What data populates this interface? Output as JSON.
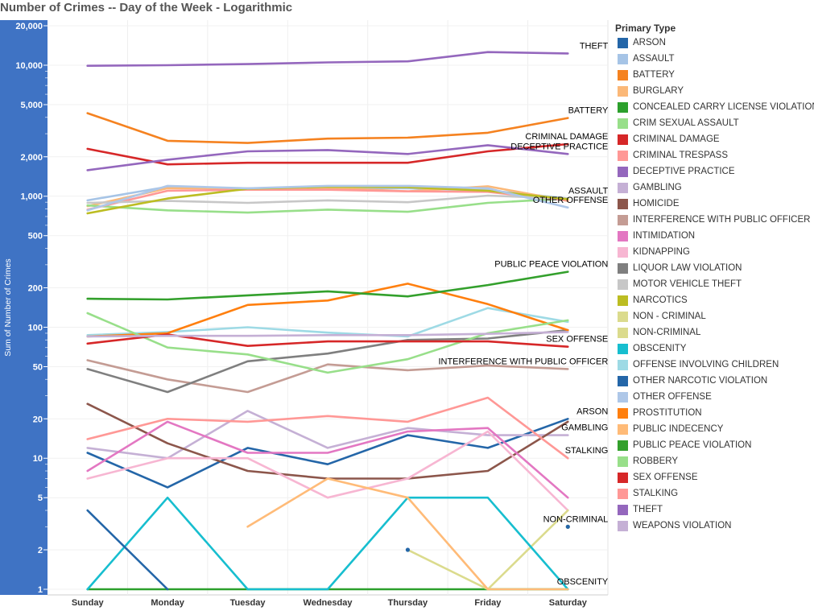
{
  "title": "Number of Crimes -- Day of the Week - Logarithmic",
  "chart_data": {
    "type": "line",
    "title": "Number of Crimes -- Day of the Week - Logarithmic",
    "xlabel": "",
    "ylabel": "Sum of Number of Crimes",
    "yscale": "log",
    "ylim": [
      1,
      20000
    ],
    "yticks": [
      1,
      2,
      5,
      10,
      20,
      50,
      100,
      200,
      500,
      1000,
      2000,
      5000,
      10000,
      20000
    ],
    "ytick_labels": [
      "1",
      "2",
      "5",
      "10",
      "20",
      "50",
      "100",
      "200",
      "500",
      "1,000",
      "2,000",
      "5,000",
      "10,000",
      "20,000"
    ],
    "categories": [
      "Sunday",
      "Monday",
      "Tuesday",
      "Wednesday",
      "Thursday",
      "Friday",
      "Saturday"
    ],
    "grid": true,
    "legend_title": "Primary Type",
    "legend_position": "right",
    "series": [
      {
        "name": "ARSON",
        "color": "#2466a8",
        "values": [
          11,
          6,
          12,
          9,
          15,
          12,
          20
        ],
        "end_label": "ARSON"
      },
      {
        "name": "ASSAULT",
        "color": "#a6c4e6",
        "values": [
          930,
          1180,
          1120,
          1160,
          1150,
          1110,
          960
        ],
        "end_label": "ASSAULT"
      },
      {
        "name": "BATTERY",
        "color": "#f58220",
        "values": [
          4300,
          2650,
          2550,
          2750,
          2800,
          3050,
          3950
        ],
        "end_label": "BATTERY"
      },
      {
        "name": "BURGLARY",
        "color": "#fbb878",
        "values": [
          840,
          1150,
          1150,
          1160,
          1090,
          1190,
          920
        ]
      },
      {
        "name": "CONCEALED CARRY LICENSE VIOLATION",
        "color": "#2ca02c",
        "values": [
          1,
          1,
          1,
          1,
          1,
          1,
          1
        ]
      },
      {
        "name": "CRIM SEXUAL ASSAULT",
        "color": "#98df8a",
        "values": [
          850,
          780,
          750,
          790,
          760,
          890,
          960
        ]
      },
      {
        "name": "CRIMINAL DAMAGE",
        "color": "#d62728",
        "values": [
          2300,
          1750,
          1800,
          1800,
          1800,
          2200,
          2500
        ],
        "end_label": "CRIMINAL DAMAGE"
      },
      {
        "name": "CRIMINAL TRESPASS",
        "color": "#ff9896",
        "values": [
          790,
          1100,
          1120,
          1120,
          1090,
          1080,
          930
        ]
      },
      {
        "name": "DECEPTIVE PRACTICE",
        "color": "#9467bd",
        "values": [
          1580,
          1900,
          2200,
          2250,
          2100,
          2450,
          2100
        ],
        "end_label": "DECEPTIVE PRACTICE"
      },
      {
        "name": "GAMBLING",
        "color": "#c5b0d5",
        "values": [
          12,
          10,
          23,
          12,
          17,
          15,
          15
        ],
        "end_label": "GAMBLING"
      },
      {
        "name": "HOMICIDE",
        "color": "#8c564b",
        "values": [
          26,
          13,
          8,
          7,
          7,
          8,
          19
        ]
      },
      {
        "name": "INTERFERENCE WITH PUBLIC OFFICER",
        "color": "#c49c94",
        "values": [
          56,
          40,
          32,
          52,
          47,
          51,
          48
        ],
        "end_label": "INTERFERENCE WITH PUBLIC OFFICER"
      },
      {
        "name": "INTIMIDATION",
        "color": "#e377c2",
        "values": [
          8,
          19,
          11,
          11,
          16,
          17,
          5
        ]
      },
      {
        "name": "KIDNAPPING",
        "color": "#f7b6d2",
        "values": [
          7,
          10,
          10,
          5,
          7,
          16,
          4
        ]
      },
      {
        "name": "LIQUOR LAW VIOLATION",
        "color": "#7f7f7f",
        "values": [
          48,
          32,
          55,
          63,
          80,
          82,
          95
        ]
      },
      {
        "name": "MOTOR VEHICLE THEFT",
        "color": "#c7c7c7",
        "values": [
          890,
          920,
          890,
          930,
          900,
          1010,
          960
        ]
      },
      {
        "name": "NARCOTICS",
        "color": "#bcbd22",
        "values": [
          740,
          960,
          1140,
          1180,
          1170,
          1100,
          950
        ]
      },
      {
        "name": "NON - CRIMINAL",
        "color": "#dbdb8d",
        "values": [
          null,
          null,
          null,
          null,
          2,
          1,
          4
        ]
      },
      {
        "name": "NON-CRIMINAL",
        "color": "#dbdb8d",
        "values": [
          null,
          null,
          null,
          null,
          null,
          null,
          3
        ],
        "end_label": "NON-CRIMINAL"
      },
      {
        "name": "OBSCENITY",
        "color": "#17becf",
        "values": [
          1,
          5,
          1,
          1,
          5,
          5,
          1
        ],
        "end_label": "OBSCENITY"
      },
      {
        "name": "OFFENSE INVOLVING CHILDREN",
        "color": "#9edae5",
        "values": [
          87,
          92,
          100,
          91,
          85,
          140,
          110
        ]
      },
      {
        "name": "OTHER NARCOTIC VIOLATION",
        "color": "#2466a8",
        "values": [
          4,
          1,
          null,
          null,
          2,
          null,
          3
        ]
      },
      {
        "name": "OTHER OFFENSE",
        "color": "#aec7e8",
        "values": [
          780,
          1200,
          1150,
          1200,
          1200,
          1150,
          820
        ],
        "end_label": "OTHER OFFENSE"
      },
      {
        "name": "PROSTITUTION",
        "color": "#ff7f0e",
        "values": [
          85,
          90,
          148,
          160,
          215,
          150,
          95
        ]
      },
      {
        "name": "PUBLIC INDECENCY",
        "color": "#ffbb78",
        "values": [
          null,
          null,
          3,
          7,
          5,
          1,
          1
        ]
      },
      {
        "name": "PUBLIC PEACE VIOLATION",
        "color": "#33a02c",
        "values": [
          165,
          163,
          175,
          188,
          172,
          210,
          265
        ],
        "end_label": "PUBLIC PEACE VIOLATION"
      },
      {
        "name": "ROBBERY",
        "color": "#98df8a",
        "values": [
          128,
          70,
          62,
          45,
          57,
          90,
          113
        ]
      },
      {
        "name": "SEX OFFENSE",
        "color": "#d62728",
        "values": [
          75,
          88,
          72,
          78,
          78,
          78,
          71
        ],
        "end_label": "SEX OFFENSE"
      },
      {
        "name": "STALKING",
        "color": "#ff9896",
        "values": [
          14,
          20,
          19,
          21,
          19,
          29,
          10
        ],
        "end_label": "STALKING"
      },
      {
        "name": "THEFT",
        "color": "#9467bd",
        "values": [
          9900,
          10000,
          10200,
          10500,
          10700,
          12600,
          12300
        ],
        "end_label": "THEFT"
      },
      {
        "name": "WEAPONS VIOLATION",
        "color": "#c5b0d5",
        "values": [
          85,
          86,
          86,
          87,
          87,
          89,
          92
        ]
      }
    ]
  }
}
